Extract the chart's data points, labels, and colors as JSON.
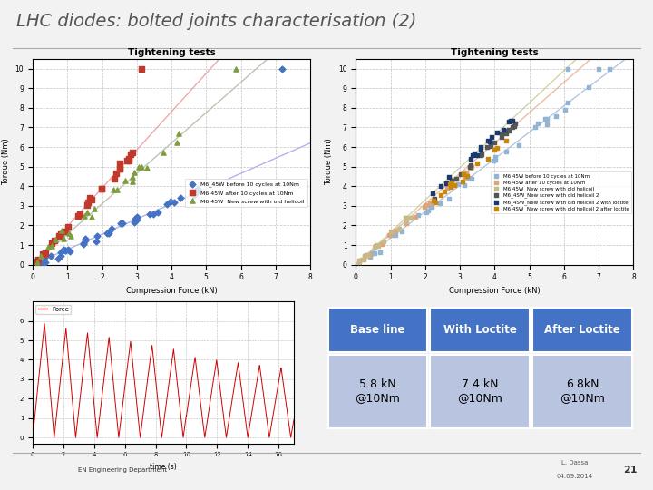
{
  "title": "LHC diodes: bolted joints characterisation (2)",
  "title_fontsize": 14,
  "background_color": "#f2f2f2",
  "table_headers": [
    "Base line",
    "With Loctite",
    "After Loctite"
  ],
  "table_values": [
    "5.8 kN\n@10Nm",
    "7.4 kN\n@10Nm",
    "6.8kN\n@10Nm"
  ],
  "table_header_bg": "#4472c4",
  "table_header_fg": "#ffffff",
  "table_cell_bg": "#b8c4e0",
  "table_cell_fg": "#000000",
  "footer_right1": "L. Dassa",
  "footer_right2": "04.09.2014",
  "footer_page": "21",
  "plot1_title": "Tightening tests",
  "plot1_xlabel": "Compression Force (kN)",
  "plot1_ylabel": "Torque (Nm)",
  "plot2_title": "Tightening tests",
  "plot2_xlabel": "Compression Force (kN)",
  "plot2_ylabel": "Torque (Nm)",
  "force_plot_xlabel": "time (s)",
  "force_legend": "Force",
  "line_color": "#cc0000",
  "divider_color": "#4472c4",
  "p1_s1_color": "#4472c4",
  "p1_s1_marker": "D",
  "p1_s1_label": "M6_45W before 10 cycles at 10Nm",
  "p1_s2_color": "#c0392b",
  "p1_s2_marker": "s",
  "p1_s2_label": "M6 45W after 10 cycles at 10Nm",
  "p1_s3_color": "#7f9c3e",
  "p1_s3_marker": "^",
  "p1_s3_label": "M6 45W  New screw with old helicoil",
  "p2_s1_color": "#92b4d5",
  "p2_s1_label": "M6 45W before 10 cycles at 10Nm",
  "p2_s2_color": "#d9a57a",
  "p2_s2_label": "M6 45W after 10 cycles at 10Nm",
  "p2_s3_color": "#c8b98a",
  "p2_s3_label": "M6 45W  New screw with old helicoil",
  "p2_s4_color": "#555555",
  "p2_s4_label": "M6_4SW_New screw with old helicoil 2",
  "p2_s5_color": "#1a3a6e",
  "p2_s5_label": "M6_4SW_New screw with old helicoil 2 with loctite",
  "p2_s6_color": "#c8860a",
  "p2_s6_label": "M6 4SW  New screw with old hellcoil 2 after loctite"
}
